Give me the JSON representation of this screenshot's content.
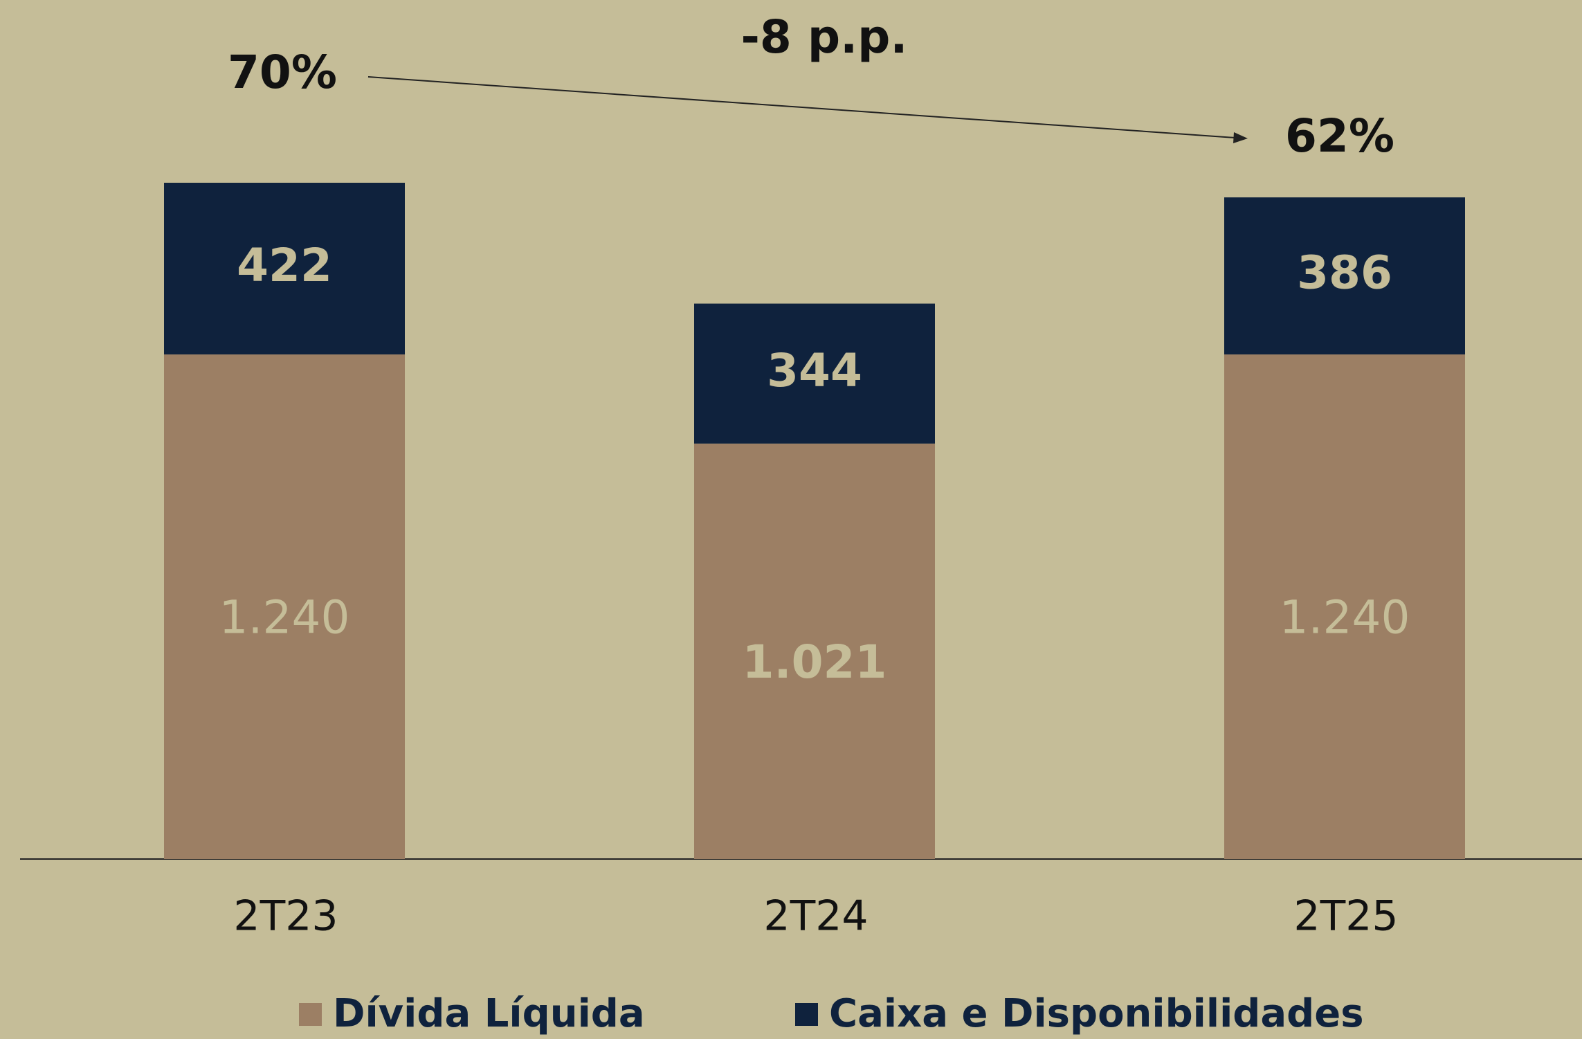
{
  "chart_data": {
    "type": "stacked_bar",
    "categories": [
      "2T23",
      "2T24",
      "2T25"
    ],
    "series": [
      {
        "name": "Dívida Líquida",
        "color": "#9c7f64",
        "values": [
          1240,
          1021,
          1240
        ],
        "value_labels": [
          "1.240",
          "1.021",
          "1.240"
        ]
      },
      {
        "name": "Caixa e Disponibilidades",
        "color": "#0f223d",
        "values": [
          422,
          344,
          386
        ]
      }
    ],
    "annotations": [
      "70%",
      "-8 p.p.",
      "62%"
    ],
    "legend": "bottom"
  }
}
